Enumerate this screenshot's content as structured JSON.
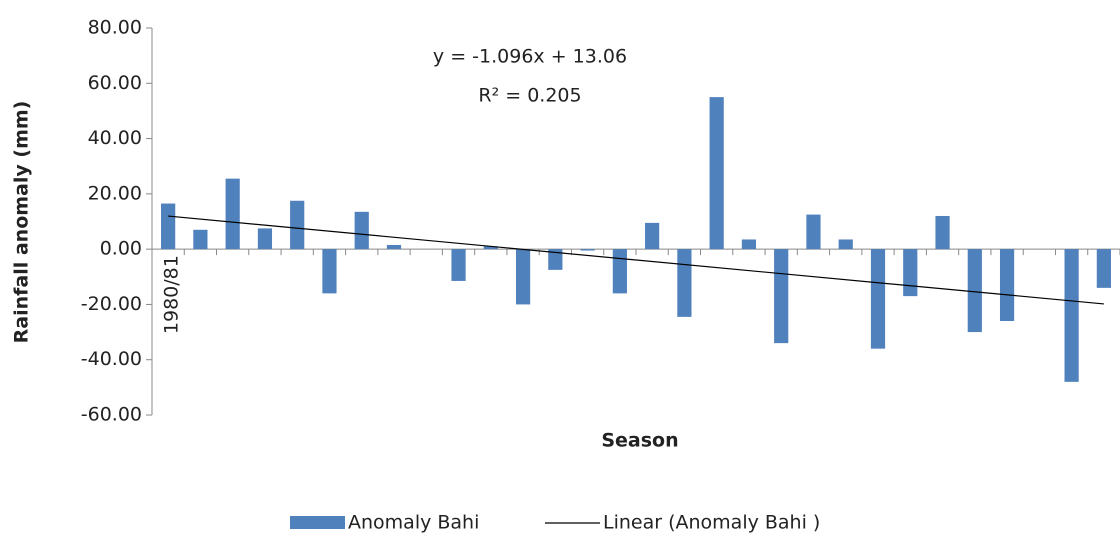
{
  "chart_data": {
    "type": "bar",
    "x_label": "Season",
    "y_label": "Rainfall anomaly (mm)",
    "categories": [
      "1980/81",
      null,
      null,
      null,
      null,
      null,
      null,
      null,
      null,
      null,
      null,
      null,
      null,
      null,
      null,
      null,
      null,
      null,
      null,
      null,
      null,
      null,
      null,
      null,
      null,
      null,
      null,
      null,
      null,
      null
    ],
    "series": [
      {
        "name": "Anomaly Bahi",
        "color": "#4f81bd",
        "values": [
          16.5,
          7,
          25.5,
          7.5,
          17.5,
          -16,
          13.5,
          1.5,
          0,
          -11.5,
          1,
          -20,
          -7.5,
          -0.5,
          -16,
          9.5,
          -24.5,
          55,
          3.5,
          -34,
          12.5,
          3.5,
          -36,
          -17,
          12,
          -30,
          -26,
          0,
          -48,
          -14
        ]
      }
    ],
    "trend": {
      "name": "Linear (Anomaly Bahi )",
      "color": "#000000",
      "slope": -1.096,
      "intercept": 13.06,
      "equation": "y = -1.096x + 13.06",
      "r2_label": "R² = 0.205"
    },
    "ylim": [
      -60,
      80
    ],
    "yticks": [
      {
        "value": -60,
        "label": "-60.00"
      },
      {
        "value": -40,
        "label": "-40.00"
      },
      {
        "value": -20,
        "label": "-20.00"
      },
      {
        "value": 0,
        "label": "0.00"
      },
      {
        "value": 20,
        "label": "20.00"
      },
      {
        "value": 40,
        "label": "40.00"
      },
      {
        "value": 60,
        "label": "60.00"
      },
      {
        "value": 80,
        "label": "80.00"
      }
    ],
    "grid": false,
    "legend": "bottom"
  }
}
